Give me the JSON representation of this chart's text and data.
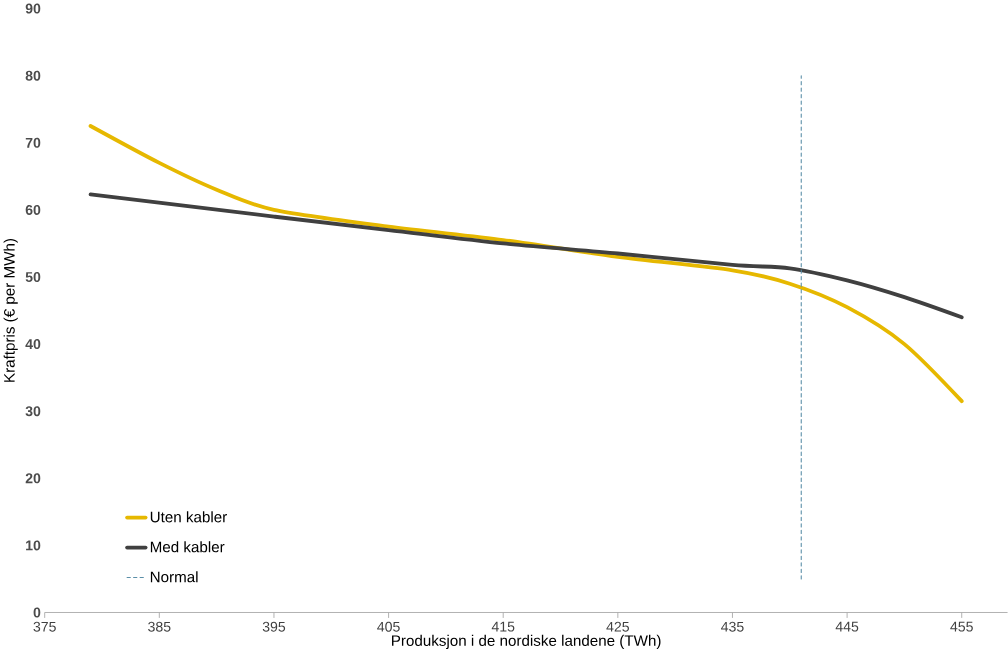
{
  "chart_data": {
    "type": "line",
    "xlabel": "Produksjon i de nordiske landene (TWh)",
    "ylabel": "Kraftpris (€ per MWh)",
    "xlim": [
      375,
      459
    ],
    "xticks": [
      375,
      385,
      395,
      405,
      415,
      425,
      435,
      445,
      455
    ],
    "ylim": [
      0,
      90
    ],
    "yticks": [
      0,
      10,
      20,
      30,
      40,
      50,
      60,
      70,
      80,
      90
    ],
    "grid": false,
    "legend": "bottom left",
    "marker": "none",
    "series": [
      {
        "name": "Uten kabler",
        "color": "#e6b800",
        "x": [
          379,
          385,
          390,
          395,
          405,
          415,
          425,
          435,
          440,
          445,
          450,
          455
        ],
        "values": [
          72.5,
          67,
          63,
          60,
          57.5,
          55.5,
          53,
          51,
          49,
          45.5,
          40,
          31.5
        ]
      },
      {
        "name": "Med kabler",
        "color": "#404040",
        "x": [
          379,
          395,
          405,
          415,
          425,
          435,
          440,
          445,
          450,
          455
        ],
        "values": [
          62.3,
          59,
          57,
          55,
          53.5,
          51.8,
          51.3,
          49.5,
          47,
          44
        ]
      },
      {
        "name": "Normal",
        "color": "#5b8fa8",
        "line_style": "dashed",
        "x": [
          441,
          441
        ],
        "values": [
          5,
          80
        ]
      }
    ]
  }
}
